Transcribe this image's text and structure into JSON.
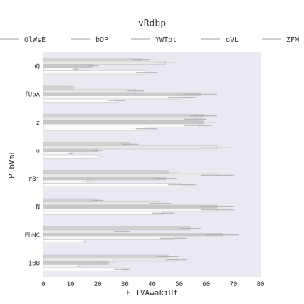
{
  "chart_data": {
    "type": "bar",
    "orientation": "horizontal",
    "title": "vRdbp",
    "xlabel": "F IVAwakiUf",
    "ylabel": "P bVmL",
    "xlim": [
      0,
      80
    ],
    "xticks": [
      0,
      10,
      20,
      30,
      40,
      50,
      60,
      70,
      80
    ],
    "grid": false,
    "legend_position": "top",
    "categories": [
      "bQ",
      "fUbA",
      "z",
      "u",
      "rBj",
      "N",
      "FhNC",
      "iBU"
    ],
    "series": [
      {
        "name": "OlWsE",
        "color": "#d2d2d2",
        "values": [
          36,
          11,
          59,
          32,
          46,
          20,
          54,
          46
        ],
        "errors": [
          3,
          1,
          5,
          3,
          4,
          2,
          4,
          4
        ]
      },
      {
        "name": "bOP",
        "color": "#e8e8e8",
        "values": [
          45,
          34,
          56,
          64,
          64,
          43,
          29,
          49
        ],
        "errors": [
          4,
          3,
          4,
          6,
          6,
          4,
          3,
          4
        ]
      },
      {
        "name": "YWTpt",
        "color": "#c8c8c8",
        "values": [
          18,
          58,
          59,
          20,
          45,
          64,
          66,
          24
        ],
        "errors": [
          2,
          6,
          5,
          2,
          4,
          6,
          6,
          3
        ]
      },
      {
        "name": "oVL",
        "color": "#f7f7f7",
        "values": [
          12,
          51,
          57,
          10,
          16,
          64,
          48,
          13
        ],
        "errors": [
          1,
          5,
          5,
          1,
          2,
          6,
          5,
          1
        ]
      },
      {
        "name": "ZFM",
        "color": "#fcfcfc",
        "values": [
          38,
          27,
          38,
          21,
          51,
          44,
          15,
          29
        ],
        "errors": [
          4,
          3,
          4,
          2,
          5,
          4,
          1,
          3
        ]
      }
    ]
  }
}
